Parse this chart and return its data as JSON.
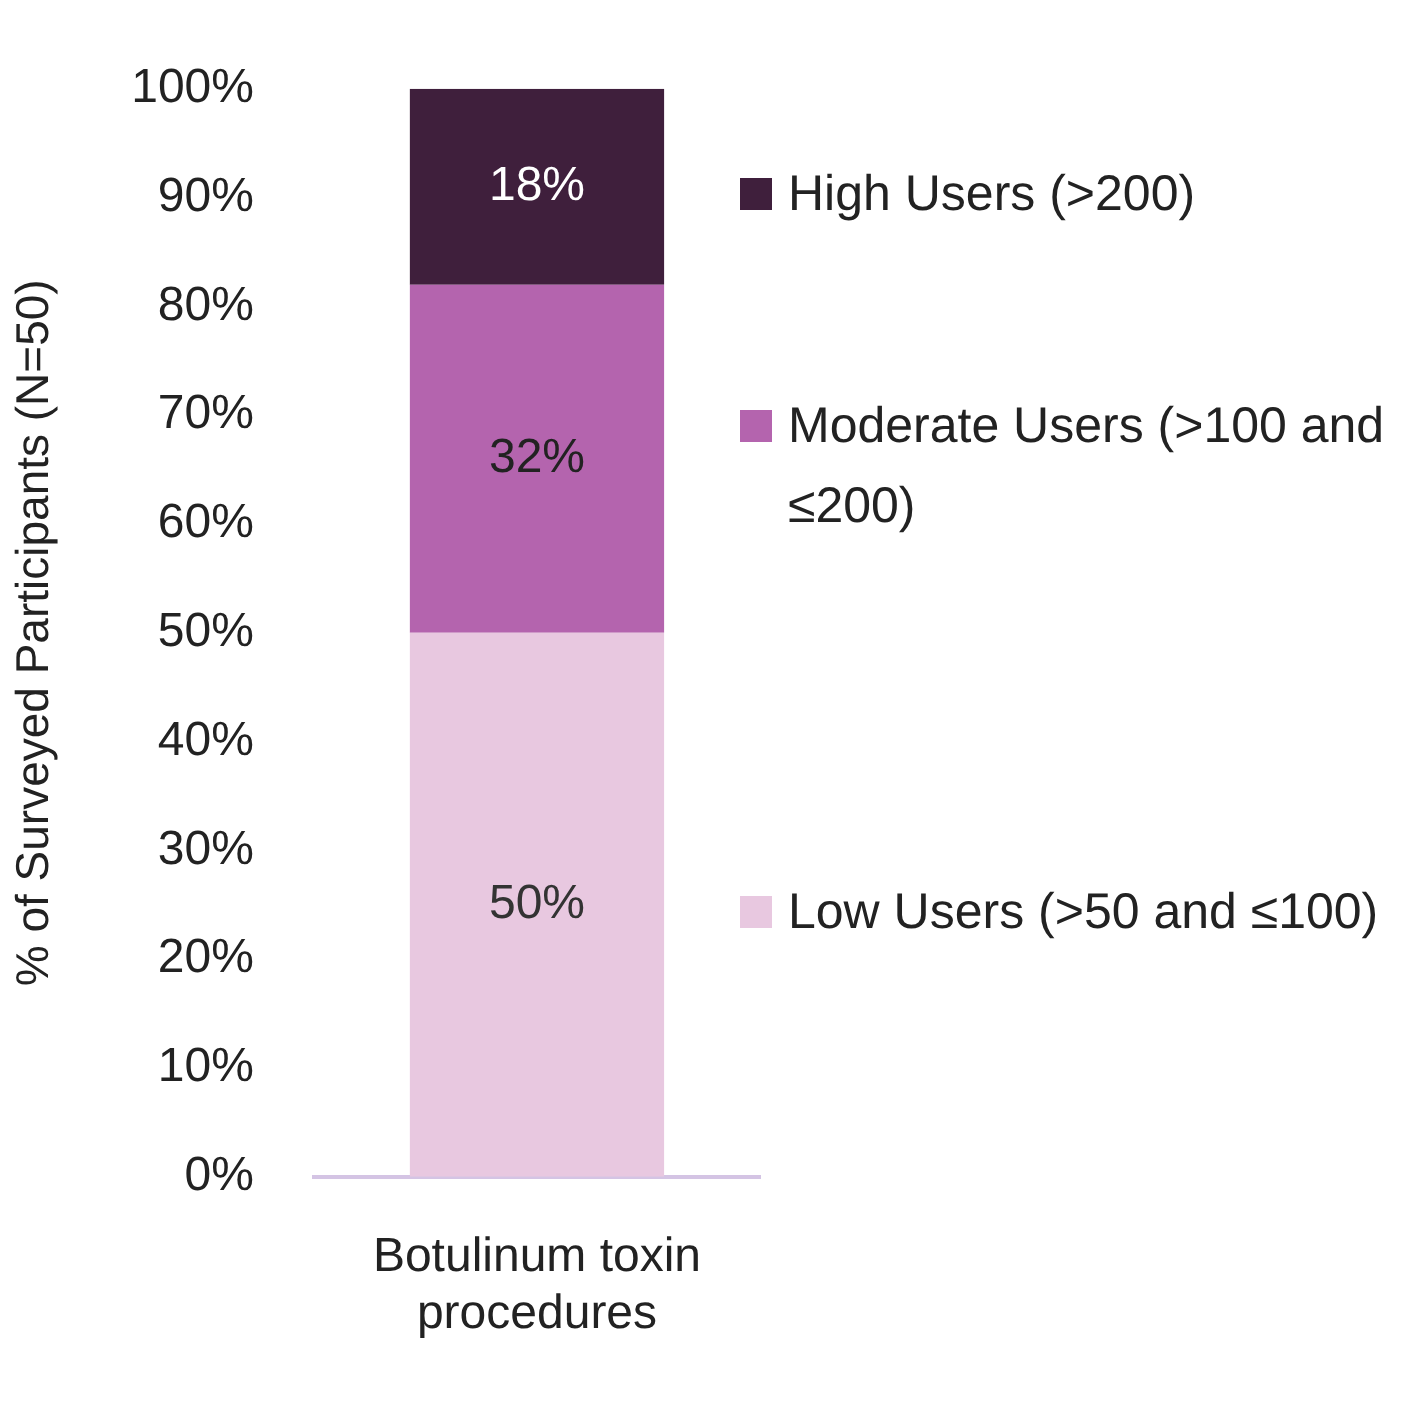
{
  "chart_data": {
    "type": "bar",
    "stacked": true,
    "ylabel": "% of Surveyed Participants (N=50)",
    "categories": [
      "Botulinum toxin procedures"
    ],
    "series": [
      {
        "name": "Low Users (>50 and ≤100)",
        "color": "#e8c8e0",
        "values": [
          50
        ],
        "value_labels": [
          "50%"
        ]
      },
      {
        "name": "Moderate Users (>100 and ≤200)",
        "color": "#b464ae",
        "values": [
          32
        ],
        "value_labels": [
          "32%"
        ]
      },
      {
        "name": "High Users (>200)",
        "color": "#3f1f3c",
        "values": [
          18
        ],
        "value_labels": [
          "18%"
        ]
      }
    ],
    "ylim": [
      0,
      100
    ],
    "yticks": [
      {
        "value": 0,
        "label": "0%"
      },
      {
        "value": 10,
        "label": "10%"
      },
      {
        "value": 20,
        "label": "20%"
      },
      {
        "value": 30,
        "label": "30%"
      },
      {
        "value": 40,
        "label": "40%"
      },
      {
        "value": 50,
        "label": "50%"
      },
      {
        "value": 60,
        "label": "60%"
      },
      {
        "value": 70,
        "label": "70%"
      },
      {
        "value": 80,
        "label": "80%"
      },
      {
        "value": 90,
        "label": "90%"
      },
      {
        "value": 100,
        "label": "100%"
      }
    ],
    "grid": false,
    "legend": "right"
  }
}
